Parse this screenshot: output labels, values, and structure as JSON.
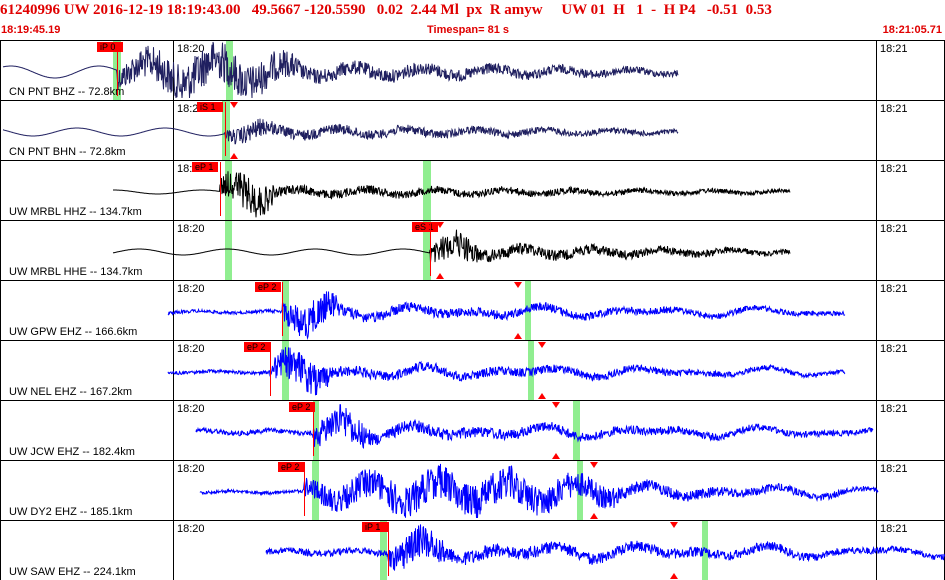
{
  "header": {
    "line": "61240996 UW 2016-12-19 18:19:43.00   49.5667 -120.5590   0.02  2.44 Ml  px  R amyw     UW 01  H   1  -  H P4   -0.51  0.53",
    "start_time": "18:19:45.19",
    "timespan": "Timespan=  81 s",
    "end_time": "18:21:05.71"
  },
  "colors": {
    "header_text": "#e00000",
    "wave_dark": "#202060",
    "wave_black": "#000000",
    "wave_blue": "#0000ff",
    "pick": "#ff0000",
    "window": "#90ee90"
  },
  "tick_left": "18:20",
  "tick_right": "18:21",
  "panels": [
    {
      "station": "CN PNT BHZ -- 72.8km",
      "pick": "iP 0",
      "color": "wave_dark"
    },
    {
      "station": "CN PNT BHN -- 72.8km",
      "pick": "iS 1",
      "color": "wave_dark"
    },
    {
      "station": "UW MRBL HHZ -- 134.7km",
      "pick": "eP 1",
      "color": "wave_black"
    },
    {
      "station": "UW MRBL HHE -- 134.7km",
      "pick": "eS 1",
      "color": "wave_black"
    },
    {
      "station": "UW GPW EHZ -- 166.6km",
      "pick": "eP 2",
      "color": "wave_blue"
    },
    {
      "station": "UW NEL EHZ -- 167.2km",
      "pick": "eP 2",
      "color": "wave_blue"
    },
    {
      "station": "UW JCW EHZ -- 182.4km",
      "pick": "eP 2",
      "color": "wave_blue"
    },
    {
      "station": "UW DY2 EHZ -- 185.1km",
      "pick": "eP 2",
      "color": "wave_blue"
    },
    {
      "station": "UW SAW EHZ -- 224.1km",
      "pick": "iP 1",
      "color": "wave_blue"
    }
  ]
}
